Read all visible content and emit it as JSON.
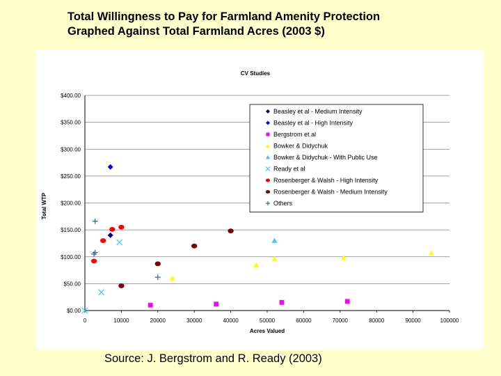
{
  "slide": {
    "title_line1": "Total Willingness to Pay for Farmland Amenity Protection",
    "title_line2": "Graphed Against Total Farmland Acres (2003 $)",
    "source": "Source: J. Bergstrom and R. Ready  (2003)"
  },
  "chart_data": {
    "type": "scatter",
    "title": "CV Studies",
    "xlabel": "Acres Valued",
    "ylabel": "Total WTP",
    "xlim": [
      0,
      100000
    ],
    "ylim": [
      0,
      400
    ],
    "x_ticks": [
      "0",
      "10000",
      "20000",
      "30000",
      "40000",
      "50000",
      "60000",
      "70000",
      "80000",
      "90000",
      "100000"
    ],
    "y_ticks": [
      "$0.00",
      "$50.00",
      "$100.00",
      "$150.00",
      "$200.00",
      "$250.00",
      "$300.00",
      "$350.00",
      "$400.00"
    ],
    "grid": "horizontal",
    "legend_position": "top-right",
    "series": [
      {
        "name": "Beasley et al - Medium Intensity",
        "marker": "diamond",
        "color": "#000080",
        "points": [
          [
            7000,
            140
          ]
        ]
      },
      {
        "name": "Beasley et al - High Intensity",
        "marker": "diamond",
        "color": "#0000ff",
        "points": [
          [
            7000,
            267
          ]
        ]
      },
      {
        "name": "Bergstrom et al",
        "marker": "square",
        "color": "#ff00ff",
        "points": [
          [
            18000,
            10
          ],
          [
            36000,
            12
          ],
          [
            54000,
            15
          ],
          [
            72000,
            17
          ]
        ]
      },
      {
        "name": "Bowker & Didychuk",
        "marker": "triangle",
        "color": "#ffff00",
        "points": [
          [
            24000,
            60
          ],
          [
            47000,
            84
          ],
          [
            52000,
            96
          ],
          [
            71000,
            98
          ],
          [
            95000,
            107
          ]
        ]
      },
      {
        "name": "Bowker & Didychuk - With Public Use",
        "marker": "triangle",
        "color": "#33ccff",
        "points": [
          [
            52000,
            130
          ]
        ]
      },
      {
        "name": "Ready et al",
        "marker": "x",
        "color": "#33ccff",
        "points": [
          [
            0,
            0
          ],
          [
            4500,
            34
          ],
          [
            9500,
            127
          ]
        ]
      },
      {
        "name": "Rosenberger & Walsh - High Intensity",
        "marker": "circle",
        "color": "#ff0000",
        "points": [
          [
            2500,
            92
          ],
          [
            5000,
            130
          ],
          [
            7500,
            151
          ],
          [
            10000,
            155
          ]
        ]
      },
      {
        "name": "Rosenberger & Walsh - Medium Intensity",
        "marker": "circle",
        "color": "#800000",
        "points": [
          [
            10000,
            46
          ],
          [
            20000,
            87
          ],
          [
            30000,
            120
          ],
          [
            40000,
            148
          ]
        ]
      },
      {
        "name": "Others",
        "marker": "plus",
        "color": "#336699",
        "points": [
          [
            2500,
            105
          ],
          [
            2800,
            108
          ],
          [
            2800,
            166
          ],
          [
            20000,
            62
          ]
        ]
      }
    ]
  }
}
